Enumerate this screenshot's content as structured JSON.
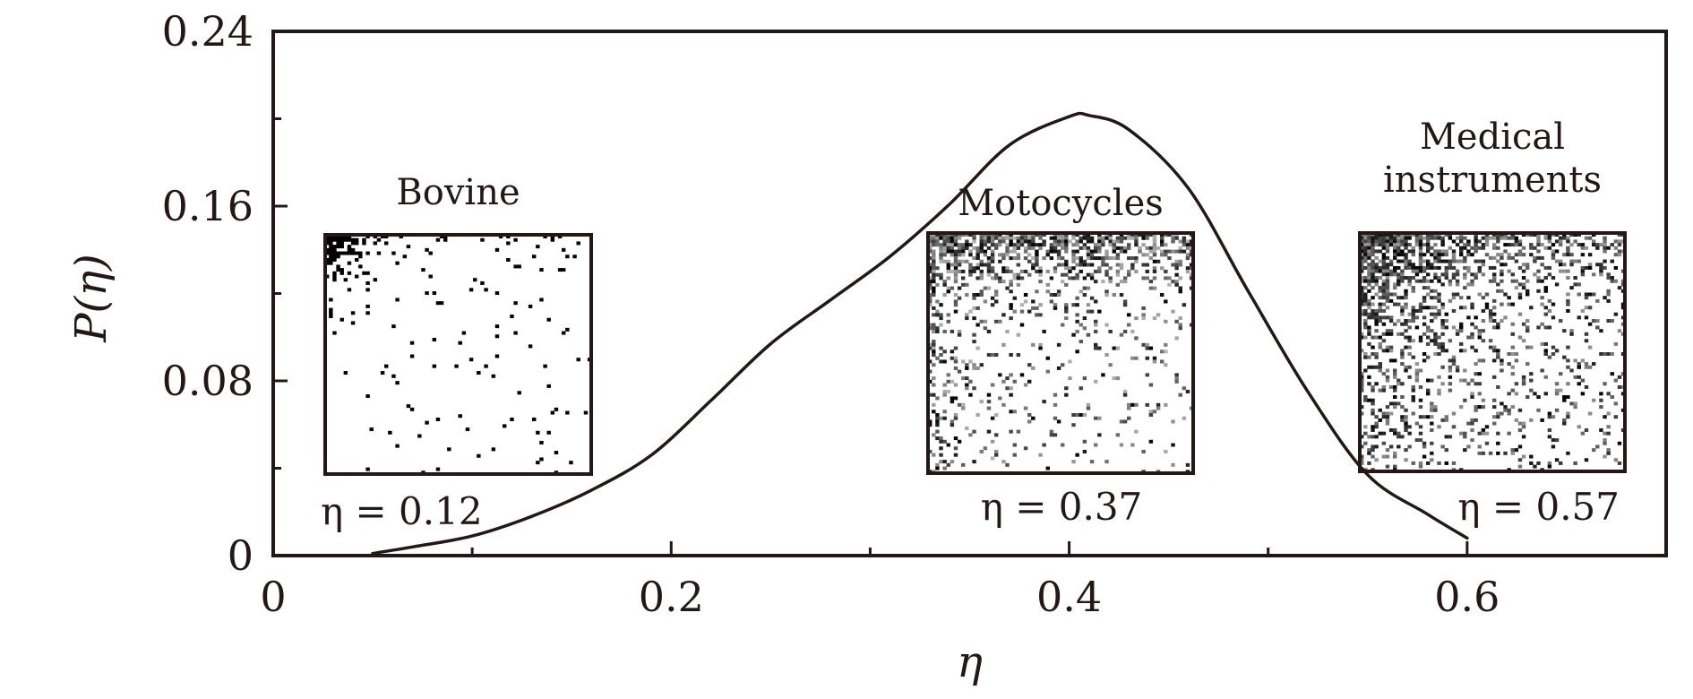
{
  "chart_data": {
    "type": "line",
    "xlabel": "η",
    "ylabel": "P(η)",
    "xlim": [
      0,
      0.7
    ],
    "ylim": [
      0,
      0.24
    ],
    "x_ticks": [
      {
        "value": 0,
        "label": "0"
      },
      {
        "value": 0.2,
        "label": "0.2"
      },
      {
        "value": 0.4,
        "label": "0.4"
      },
      {
        "value": 0.6,
        "label": "0.6"
      }
    ],
    "x_minor_ticks": [
      0.1,
      0.3,
      0.5
    ],
    "y_ticks": [
      {
        "value": 0,
        "label": "0"
      },
      {
        "value": 0.08,
        "label": "0.08"
      },
      {
        "value": 0.16,
        "label": "0.16"
      },
      {
        "value": 0.24,
        "label": "0.24"
      }
    ],
    "y_minor_ticks": [
      0.04,
      0.12,
      0.2
    ],
    "grid": false,
    "series": [
      {
        "color": "#231815",
        "x": [
          0.05,
          0.07,
          0.1,
          0.13,
          0.16,
          0.19,
          0.22,
          0.25,
          0.28,
          0.31,
          0.34,
          0.37,
          0.4,
          0.41,
          0.43,
          0.46,
          0.49,
          0.52,
          0.55,
          0.58,
          0.6
        ],
        "y": [
          0.001,
          0.004,
          0.009,
          0.018,
          0.03,
          0.046,
          0.071,
          0.097,
          0.117,
          0.137,
          0.161,
          0.188,
          0.201,
          0.2015,
          0.195,
          0.168,
          0.121,
          0.075,
          0.037,
          0.019,
          0.008
        ]
      }
    ],
    "insets": [
      {
        "title_lines": [
          "Bovine"
        ],
        "eta_label": "η = 0.12",
        "pattern": "sparse"
      },
      {
        "title_lines": [
          "Motocycles"
        ],
        "eta_label": "η = 0.37",
        "pattern": "medium"
      },
      {
        "title_lines": [
          "Medical",
          "instruments"
        ],
        "eta_label": "η = 0.57",
        "pattern": "dense"
      }
    ]
  }
}
